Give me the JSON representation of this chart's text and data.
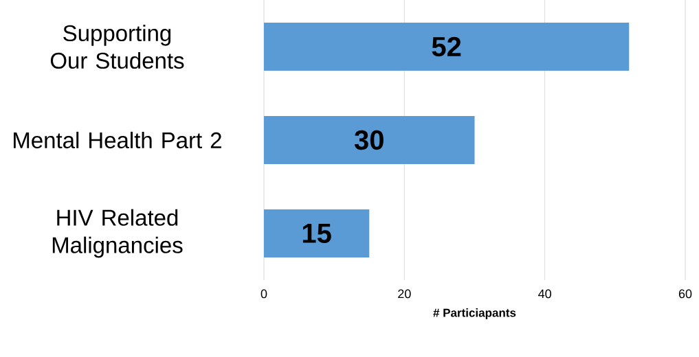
{
  "chart_data": {
    "type": "bar",
    "orientation": "horizontal",
    "categories": [
      "Supporting Our Students",
      "Mental Health Part 2",
      "HIV Related Malignancies"
    ],
    "values": [
      52,
      30,
      15
    ],
    "color": "#5b9bd5",
    "xlabel": "# Particiapants",
    "xlim": [
      0,
      60
    ],
    "xticks": [
      0,
      20,
      40,
      60
    ],
    "grid": "x",
    "data_labels": true
  }
}
